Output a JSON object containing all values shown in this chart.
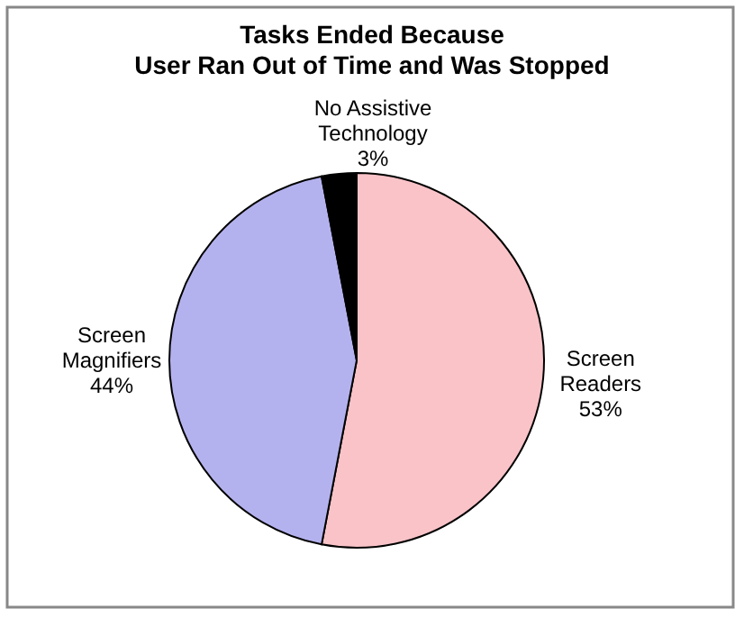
{
  "chart_data": {
    "type": "pie",
    "title": "Tasks Ended Because\nUser Ran Out of Time and Was Stopped",
    "categories": [
      "Screen Readers",
      "Screen Magnifiers",
      "No Assistive Technology"
    ],
    "values": [
      53,
      44,
      3
    ],
    "colors": [
      "#f9c3c8",
      "#b4b2ee",
      "#000000"
    ],
    "value_labels": [
      "53%",
      "44%",
      "3%"
    ]
  }
}
